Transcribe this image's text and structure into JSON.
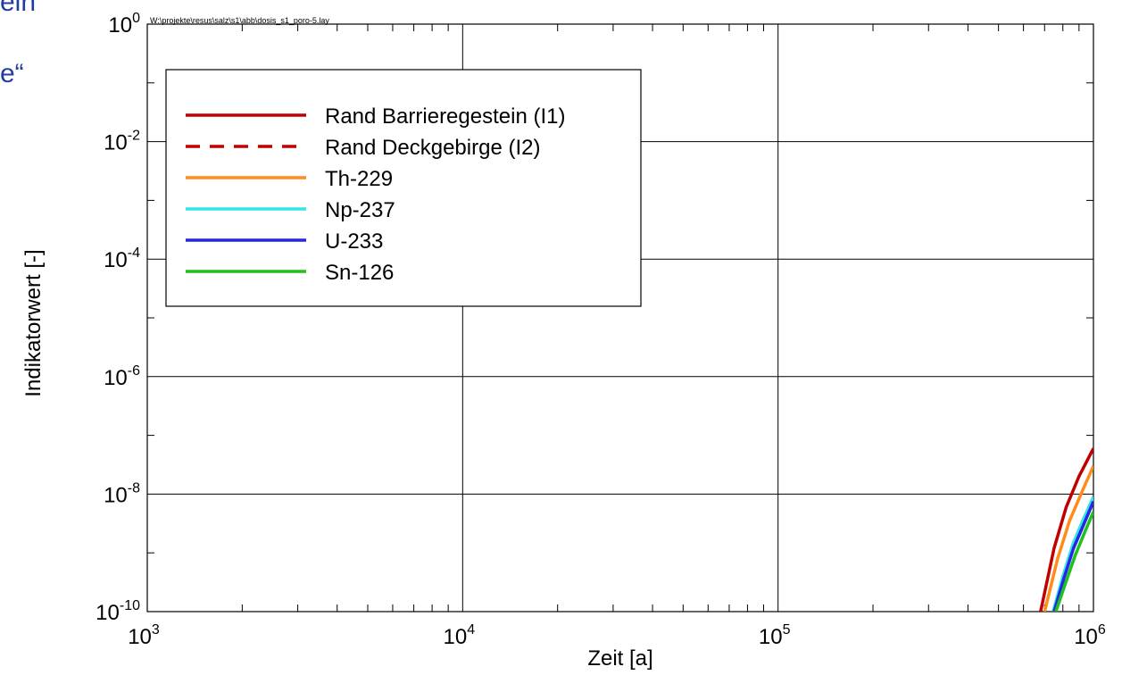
{
  "slide_fragments": [
    "ein",
    "e“"
  ],
  "chart_data": {
    "type": "line",
    "file_path": "W:\\projekte\\resus\\salz\\s1\\abb\\dosis_s1_poro-5.lay",
    "xlabel": "Zeit [a]",
    "ylabel": "Indikatorwert [-]",
    "x_scale": "log",
    "y_scale": "log",
    "xlim": [
      1000,
      1000000
    ],
    "ylim": [
      1e-10,
      1
    ],
    "x_ticks": [
      {
        "value": 1000,
        "base": "10",
        "exp": "3"
      },
      {
        "value": 10000,
        "base": "10",
        "exp": "4"
      },
      {
        "value": 100000,
        "base": "10",
        "exp": "5"
      },
      {
        "value": 1000000,
        "base": "10",
        "exp": "6"
      }
    ],
    "y_ticks": [
      {
        "value": 1e-10,
        "base": "10",
        "exp": "-10"
      },
      {
        "value": 1e-08,
        "base": "10",
        "exp": "-8"
      },
      {
        "value": 1e-06,
        "base": "10",
        "exp": "-6"
      },
      {
        "value": 0.0001,
        "base": "10",
        "exp": "-4"
      },
      {
        "value": 0.01,
        "base": "10",
        "exp": "-2"
      },
      {
        "value": 1,
        "base": "10",
        "exp": "0"
      }
    ],
    "grid": true,
    "legend_position": "top-left",
    "series": [
      {
        "name": "Rand Barrieregestein (I1)",
        "color": "#c00000",
        "dash": "solid",
        "x": [
          680000,
          750000,
          820000,
          900000,
          1000000
        ],
        "y": [
          1e-10,
          1.2e-09,
          6e-09,
          2e-08,
          6e-08
        ]
      },
      {
        "name": "Rand Deckgebirge (I2)",
        "color": "#c00000",
        "dash": "dashed",
        "x": [],
        "y": []
      },
      {
        "name": "Th-229",
        "color": "#ff8c1a",
        "dash": "solid",
        "x": [
          700000,
          770000,
          840000,
          920000,
          1000000
        ],
        "y": [
          1e-10,
          8e-10,
          3.5e-09,
          1.1e-08,
          3e-08
        ]
      },
      {
        "name": "Np-237",
        "color": "#33e5e5",
        "dash": "solid",
        "x": [
          745000,
          800000,
          860000,
          930000,
          1000000
        ],
        "y": [
          1e-10,
          4e-10,
          1.4e-09,
          3.8e-09,
          9e-09
        ]
      },
      {
        "name": "U-233",
        "color": "#2626e6",
        "dash": "solid",
        "x": [
          750000,
          805000,
          865000,
          935000,
          1000000
        ],
        "y": [
          1e-10,
          3.6e-10,
          1.2e-09,
          3.2e-09,
          7.5e-09
        ]
      },
      {
        "name": "Sn-126",
        "color": "#1fc01f",
        "dash": "solid",
        "x": [
          760000,
          815000,
          875000,
          940000,
          1000000
        ],
        "y": [
          1e-10,
          3e-10,
          9e-10,
          2.3e-09,
          5e-09
        ]
      }
    ]
  }
}
